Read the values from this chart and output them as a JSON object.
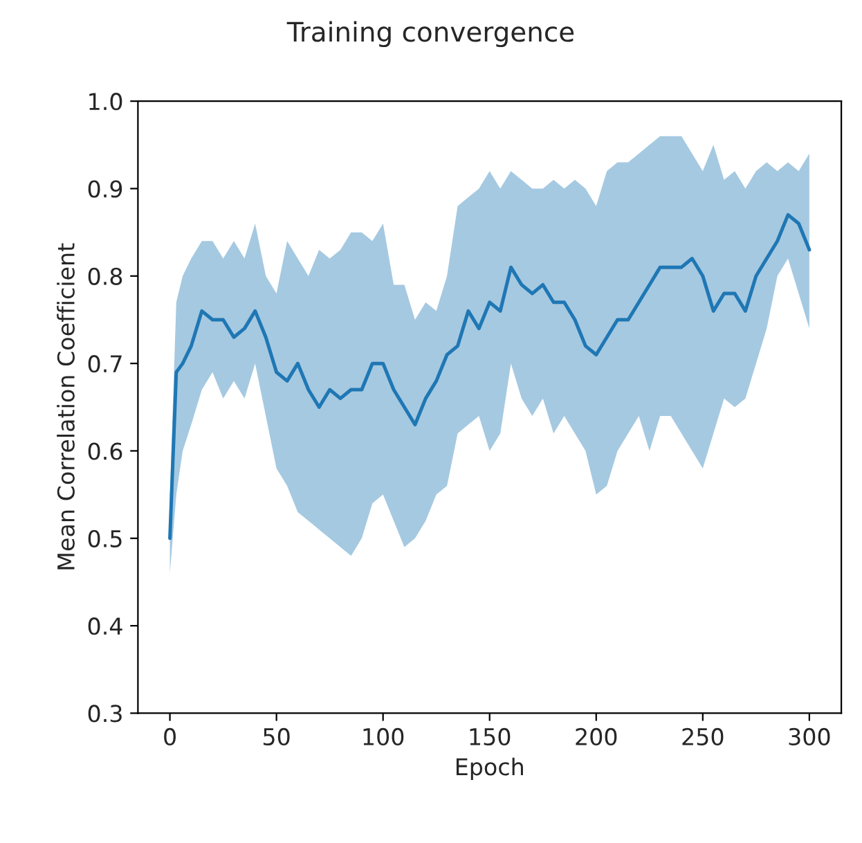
{
  "chart_data": {
    "type": "line",
    "title": "Training convergence",
    "xlabel": "Epoch",
    "ylabel": "Mean Correlation Coefficient",
    "x": [
      0,
      3,
      6,
      10,
      15,
      20,
      25,
      30,
      35,
      40,
      45,
      50,
      55,
      60,
      65,
      70,
      75,
      80,
      85,
      90,
      95,
      100,
      105,
      110,
      115,
      120,
      125,
      130,
      135,
      140,
      145,
      150,
      155,
      160,
      165,
      170,
      175,
      180,
      185,
      190,
      195,
      200,
      205,
      210,
      215,
      220,
      225,
      230,
      235,
      240,
      245,
      250,
      255,
      260,
      265,
      270,
      275,
      280,
      285,
      290,
      295,
      300
    ],
    "series": [
      {
        "color": "#1f77b4",
        "values": [
          0.5,
          0.69,
          0.7,
          0.72,
          0.76,
          0.75,
          0.75,
          0.73,
          0.74,
          0.76,
          0.73,
          0.69,
          0.68,
          0.7,
          0.67,
          0.65,
          0.67,
          0.66,
          0.67,
          0.67,
          0.7,
          0.7,
          0.67,
          0.65,
          0.63,
          0.66,
          0.68,
          0.71,
          0.72,
          0.76,
          0.74,
          0.77,
          0.76,
          0.81,
          0.79,
          0.78,
          0.79,
          0.77,
          0.77,
          0.75,
          0.72,
          0.71,
          0.73,
          0.75,
          0.75,
          0.77,
          0.79,
          0.81,
          0.81,
          0.81,
          0.82,
          0.8,
          0.76,
          0.78,
          0.78,
          0.76,
          0.8,
          0.82,
          0.84,
          0.87,
          0.86,
          0.83
        ],
        "upper": [
          0.55,
          0.77,
          0.8,
          0.82,
          0.84,
          0.84,
          0.82,
          0.84,
          0.82,
          0.86,
          0.8,
          0.78,
          0.84,
          0.82,
          0.8,
          0.83,
          0.82,
          0.83,
          0.85,
          0.85,
          0.84,
          0.86,
          0.79,
          0.79,
          0.75,
          0.77,
          0.76,
          0.8,
          0.88,
          0.89,
          0.9,
          0.92,
          0.9,
          0.92,
          0.91,
          0.9,
          0.9,
          0.91,
          0.9,
          0.91,
          0.9,
          0.88,
          0.92,
          0.93,
          0.93,
          0.94,
          0.95,
          0.96,
          0.96,
          0.96,
          0.94,
          0.92,
          0.95,
          0.91,
          0.92,
          0.9,
          0.92,
          0.93,
          0.92,
          0.93,
          0.92,
          0.94
        ],
        "lower": [
          0.46,
          0.55,
          0.6,
          0.63,
          0.67,
          0.69,
          0.66,
          0.68,
          0.66,
          0.7,
          0.64,
          0.58,
          0.56,
          0.53,
          0.52,
          0.51,
          0.5,
          0.49,
          0.48,
          0.5,
          0.54,
          0.55,
          0.52,
          0.49,
          0.5,
          0.52,
          0.55,
          0.56,
          0.62,
          0.63,
          0.64,
          0.6,
          0.62,
          0.7,
          0.66,
          0.64,
          0.66,
          0.62,
          0.64,
          0.62,
          0.6,
          0.55,
          0.56,
          0.6,
          0.62,
          0.64,
          0.6,
          0.64,
          0.64,
          0.62,
          0.6,
          0.58,
          0.62,
          0.66,
          0.65,
          0.66,
          0.7,
          0.74,
          0.8,
          0.82,
          0.78,
          0.74
        ]
      }
    ],
    "xlim": [
      -15,
      315
    ],
    "xticks": [
      0,
      50,
      100,
      150,
      200,
      250,
      300
    ],
    "ylim": [
      0.3,
      1.0
    ],
    "yticks": [
      0.3,
      0.4,
      0.5,
      0.6,
      0.7,
      0.8,
      0.9,
      {
        "value": 1.0,
        "label": "1.0"
      }
    ],
    "grid": false
  }
}
